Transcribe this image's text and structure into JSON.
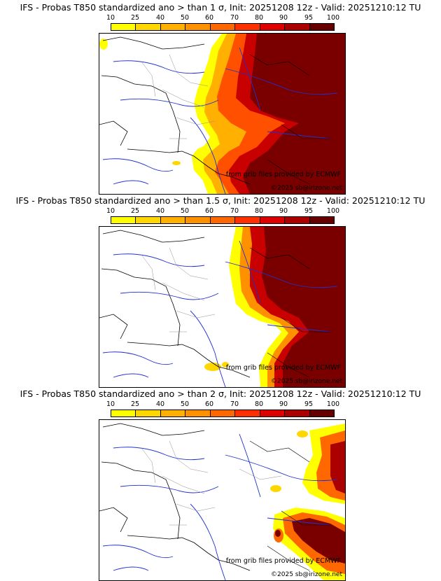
{
  "scale": {
    "labels": [
      "10",
      "25",
      "40",
      "50",
      "60",
      "70",
      "80",
      "90",
      "95",
      "100"
    ],
    "colors": [
      "#ffff00",
      "#ffd700",
      "#ffb000",
      "#ff9000",
      "#ff6800",
      "#ff3000",
      "#dd0000",
      "#aa0000",
      "#660000"
    ]
  },
  "panels": [
    {
      "title": "IFS - Probas T850  standardized ano > than 1 σ, Init: 20251208 12z - Valid: 20251210:12 TU",
      "credit": "from grib files provided by ECMWF",
      "copyright": "©2025 sb@irizone.net"
    },
    {
      "title": "IFS - Probas T850  standardized ano > than 1.5 σ, Init: 20251208 12z - Valid: 20251210:12 TU",
      "credit": "from grib files provided by ECMWF",
      "copyright": "©2025 sb@irizone.net"
    },
    {
      "title": "IFS - Probas T850  standardized ano > than 2 σ, Init: 20251208 12z - Valid: 20251210:12 TU",
      "credit": "from grib files provided by ECMWF",
      "copyright": "©2025 sb@irizone.net"
    }
  ]
}
